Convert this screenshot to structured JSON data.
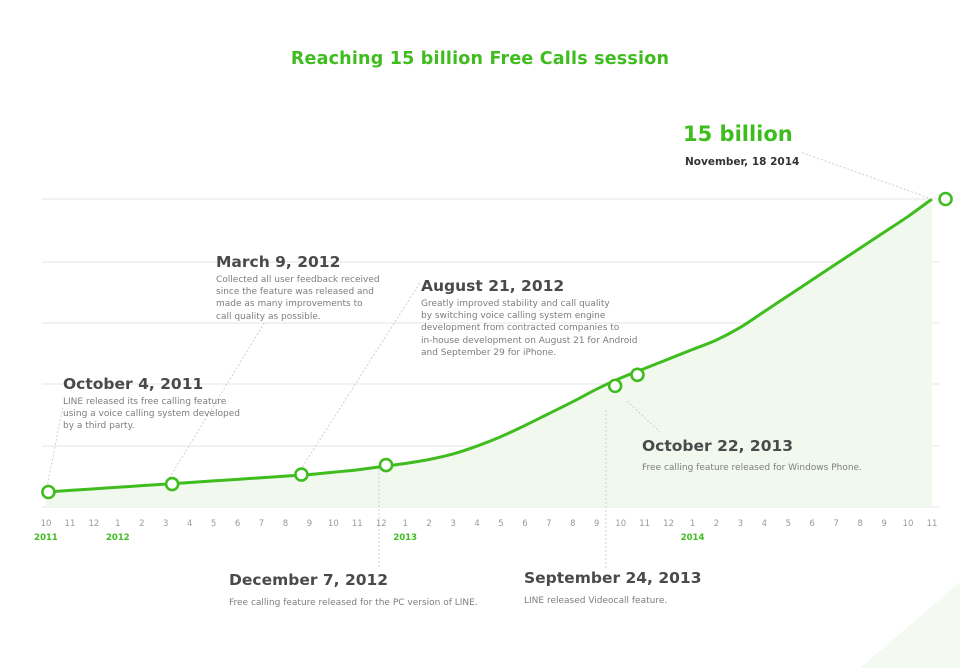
{
  "title": "Reaching 15 billion Free Calls session",
  "peak": {
    "value": "15 billion",
    "date": "November, 18 2014"
  },
  "colors": {
    "line": "#3fbd1f",
    "area": "#f1f9ee",
    "grid": "#e4e4e4",
    "tick": "#9a9a9a",
    "year": "#3fbd1f",
    "leader": "#cfcfcf"
  },
  "chart_data": {
    "type": "line",
    "title": "Reaching 15 billion Free Calls session",
    "xlabel": "",
    "ylabel": "",
    "x": [
      "2011-10",
      "2011-11",
      "2011-12",
      "2012-01",
      "2012-02",
      "2012-03",
      "2012-04",
      "2012-05",
      "2012-06",
      "2012-07",
      "2012-08",
      "2012-09",
      "2012-10",
      "2012-11",
      "2012-12",
      "2013-01",
      "2013-02",
      "2013-03",
      "2013-04",
      "2013-05",
      "2013-06",
      "2013-07",
      "2013-08",
      "2013-09",
      "2013-10",
      "2013-11",
      "2013-12",
      "2014-01",
      "2014-02",
      "2014-03",
      "2014-04",
      "2014-05",
      "2014-06",
      "2014-07",
      "2014-08",
      "2014-09",
      "2014-10",
      "2014-11"
    ],
    "tick_labels": [
      "10",
      "11",
      "12",
      "1",
      "2",
      "3",
      "4",
      "5",
      "6",
      "7",
      "8",
      "9",
      "10",
      "11",
      "12",
      "1",
      "2",
      "3",
      "4",
      "5",
      "6",
      "7",
      "8",
      "9",
      "10",
      "11",
      "12",
      "1",
      "2",
      "3",
      "4",
      "5",
      "6",
      "7",
      "8",
      "9",
      "10",
      "11"
    ],
    "years": [
      {
        "label": "2011",
        "at": "2011-10"
      },
      {
        "label": "2012",
        "at": "2012-01"
      },
      {
        "label": "2013",
        "at": "2013-01"
      },
      {
        "label": "2014",
        "at": "2014-01"
      }
    ],
    "series": [
      {
        "values": [
          0.0,
          0.1,
          0.2,
          0.3,
          0.4,
          0.5,
          0.6,
          0.7,
          0.8,
          0.9,
          1.0,
          1.1,
          1.25,
          1.4,
          1.6,
          1.8,
          2.05,
          2.4,
          2.9,
          3.5,
          4.2,
          4.95,
          5.7,
          6.5,
          7.2,
          7.8,
          8.4,
          9.0,
          9.6,
          10.4,
          11.4,
          12.4,
          13.4,
          14.4,
          15.4,
          16.4,
          17.4,
          18.5
        ]
      }
    ],
    "milestones": [
      {
        "id": "m1",
        "date": "2011-10-04",
        "value": 0.0,
        "title": "October 4, 2011",
        "desc": [
          "LINE released its free calling feature",
          "using a voice calling system developed",
          "by a third party."
        ]
      },
      {
        "id": "m2",
        "date": "2012-03-09",
        "value": 0.5,
        "title": "March 9, 2012",
        "desc": [
          "Collected all user feedback received",
          "since the feature was released and",
          "made as many improvements to",
          "call quality as possible."
        ]
      },
      {
        "id": "m3",
        "date": "2012-08-21",
        "value": 1.1,
        "title": "August 21, 2012",
        "desc": [
          "Greatly improved stability and call quality",
          "by switching voice calling system engine",
          "development from contracted companies to",
          "in-house development on August 21 for Android",
          "and September 29 for iPhone."
        ]
      },
      {
        "id": "m4",
        "date": "2012-12-07",
        "value": 1.7,
        "title": "December 7, 2012",
        "desc": [
          "Free calling feature released for the PC version of LINE."
        ]
      },
      {
        "id": "m5",
        "date": "2013-09-24",
        "value": 6.7,
        "title": "September 24, 2013",
        "desc": [
          "LINE released Videocall feature."
        ]
      },
      {
        "id": "m6",
        "date": "2013-10-22",
        "value": 7.4,
        "title": "October 22, 2013",
        "desc": [
          "Free calling feature released for Windows Phone."
        ]
      },
      {
        "id": "m7",
        "date": "2014-11-18",
        "value": 18.5,
        "title": "15 billion",
        "desc": [
          "November, 18 2014"
        ]
      }
    ],
    "ylim": [
      0,
      18.5
    ],
    "grid": true,
    "legend": "none"
  }
}
